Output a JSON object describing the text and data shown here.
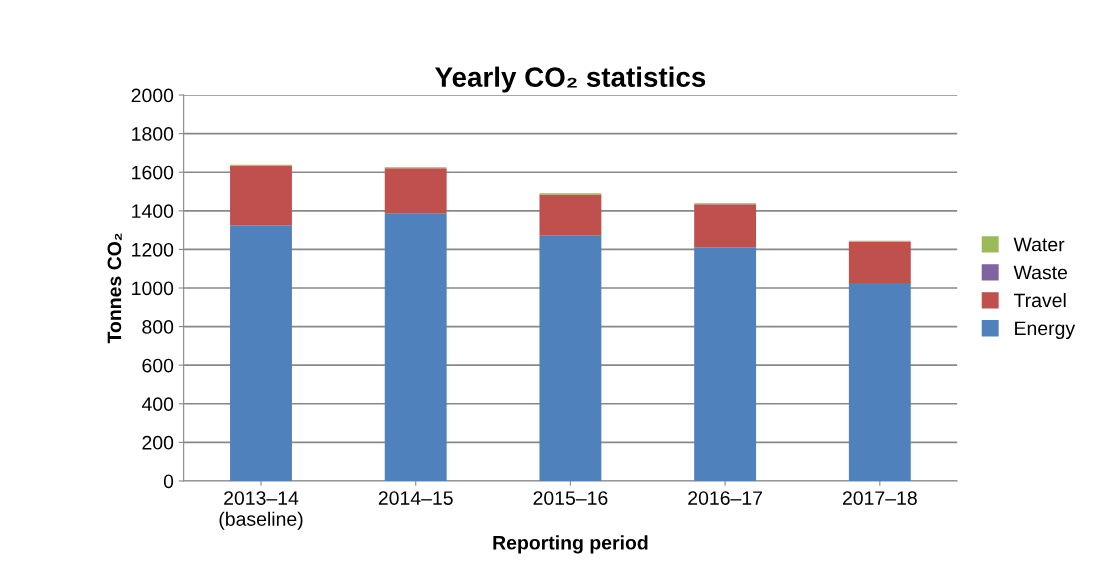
{
  "chart_data": {
    "type": "bar",
    "title": "Yearly CO₂ statistics",
    "xlabel": "Reporting period",
    "ylabel": "Tonnes CO₂",
    "categories": [
      "2013–14\n(baseline)",
      "2014–15",
      "2015–16",
      "2016–17",
      "2017–18"
    ],
    "stacked": true,
    "series": [
      {
        "name": "Energy",
        "color": "#4f81bd",
        "values": [
          1325,
          1385,
          1271,
          1211,
          1026
        ]
      },
      {
        "name": "Travel",
        "color": "#c0504d",
        "values": [
          309,
          235,
          214,
          223,
          214
        ]
      },
      {
        "name": "Waste",
        "color": "#8064a2",
        "values": [
          null,
          null,
          null,
          null,
          null
        ]
      },
      {
        "name": "Water",
        "color": "#9bbb59",
        "values": [
          5,
          6,
          6,
          5,
          5
        ]
      }
    ],
    "ylim": [
      0,
      2000
    ],
    "yticks": [
      0,
      200,
      400,
      600,
      800,
      1000,
      1200,
      1400,
      1600,
      1800,
      2000
    ],
    "grid": "y",
    "legend": "right"
  }
}
